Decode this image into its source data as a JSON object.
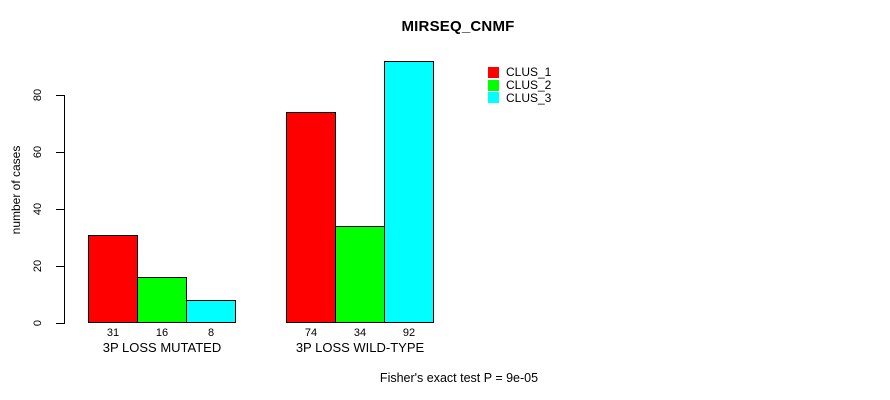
{
  "chart_data": {
    "type": "bar",
    "title": "MIRSEQ_CNMF",
    "ylabel": "number of cases",
    "xlabel": "",
    "categories": [
      "3P LOSS MUTATED",
      "3P LOSS WILD-TYPE"
    ],
    "series": [
      {
        "name": "CLUS_1",
        "color": "#ff0000",
        "values": [
          31,
          74
        ]
      },
      {
        "name": "CLUS_2",
        "color": "#00ff00",
        "values": [
          16,
          34
        ]
      },
      {
        "name": "CLUS_3",
        "color": "#00ffff",
        "values": [
          8,
          92
        ]
      }
    ],
    "bar_value_labels": [
      [
        31,
        16,
        8
      ],
      [
        74,
        34,
        92
      ]
    ],
    "yticks": [
      0,
      20,
      40,
      60,
      80
    ],
    "ylim": [
      0,
      92
    ],
    "grid": false,
    "bar_border_color": "#000000",
    "legend_position": "top-right",
    "legend_entries": [
      "CLUS_1",
      "CLUS_2",
      "CLUS_3"
    ],
    "footer": "Fisher's exact test P = 9e-05",
    "background_color": "#ffffff",
    "text_color": "#000000"
  }
}
